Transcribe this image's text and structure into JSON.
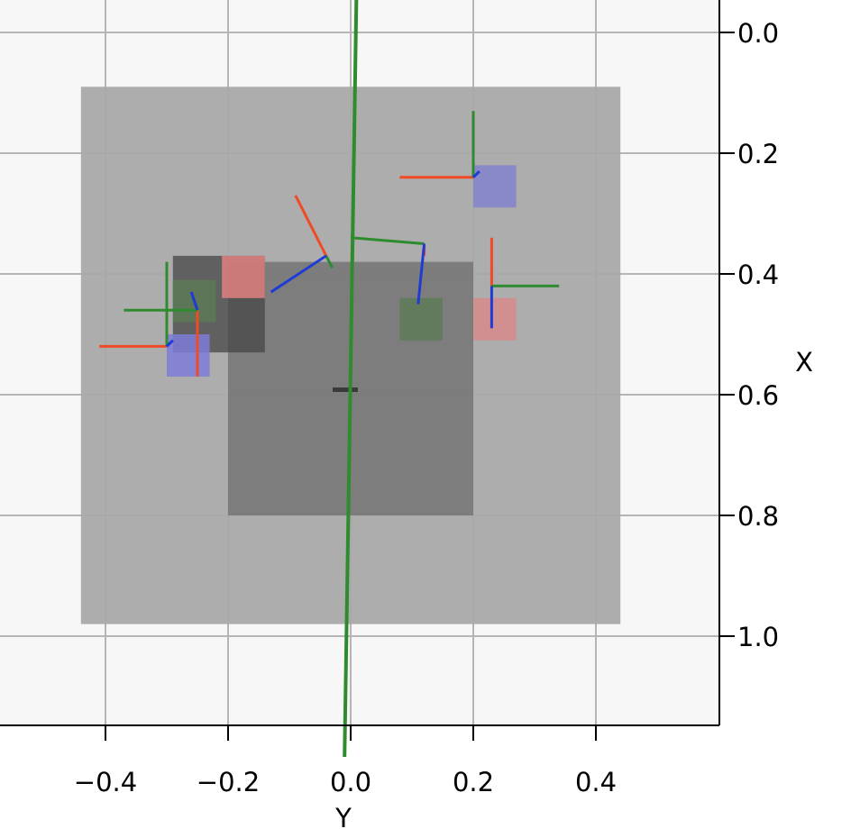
{
  "chart_data": {
    "type": "scatter",
    "title": "",
    "xlabel": "Y",
    "ylabel": "X",
    "xlim": [
      -0.5,
      0.6
    ],
    "ylim": [
      -0.05,
      1.1
    ],
    "y_inverted": true,
    "grid": true,
    "x_ticks": [
      {
        "value": -0.4,
        "label": "−0.4"
      },
      {
        "value": -0.2,
        "label": "−0.2"
      },
      {
        "value": 0.0,
        "label": "0.0"
      },
      {
        "value": 0.2,
        "label": "0.2"
      },
      {
        "value": 0.4,
        "label": "0.4"
      }
    ],
    "y_ticks": [
      {
        "value": 0.0,
        "label": "0.0"
      },
      {
        "value": 0.2,
        "label": "0.2"
      },
      {
        "value": 0.4,
        "label": "0.4"
      },
      {
        "value": 0.6,
        "label": "0.6"
      },
      {
        "value": 0.8,
        "label": "0.8"
      },
      {
        "value": 1.0,
        "label": "1.0"
      }
    ],
    "regions": [
      {
        "kind": "table",
        "y_range": [
          -0.44,
          0.44
        ],
        "x_range": [
          0.09,
          0.98
        ],
        "color": "#a9a9a9"
      },
      {
        "kind": "platform",
        "y_range": [
          -0.2,
          0.2
        ],
        "x_range": [
          0.38,
          0.8
        ],
        "color": "#6e6e6e"
      },
      {
        "kind": "block",
        "y_range": [
          -0.29,
          -0.14
        ],
        "x_range": [
          0.37,
          0.53
        ],
        "color": "#474747"
      }
    ],
    "squares": [
      {
        "color": "#e08080",
        "y_range": [
          -0.21,
          -0.14
        ],
        "x_range": [
          0.37,
          0.44
        ]
      },
      {
        "color": "#5d7a57",
        "y_range": [
          -0.29,
          -0.22
        ],
        "x_range": [
          0.41,
          0.48
        ]
      },
      {
        "color": "#7d7dd8",
        "y_range": [
          -0.3,
          -0.23
        ],
        "x_range": [
          0.5,
          0.57
        ]
      },
      {
        "color": "#8383cc",
        "y_range": [
          0.2,
          0.27
        ],
        "x_range": [
          0.22,
          0.29
        ]
      },
      {
        "color": "#5d7a57",
        "y_range": [
          0.08,
          0.15
        ],
        "x_range": [
          0.44,
          0.51
        ]
      },
      {
        "color": "#d88a8a",
        "y_range": [
          0.2,
          0.27
        ],
        "x_range": [
          0.44,
          0.51
        ]
      }
    ],
    "line_series": [
      {
        "color": "#2e8b2e",
        "points": [
          [
            0.01,
            -0.1
          ],
          [
            -0.01,
            1.2
          ]
        ]
      }
    ],
    "frames": [
      {
        "origin": [
          -0.3,
          0.52
        ],
        "red": [
          -0.41,
          0.52
        ],
        "green": [
          -0.3,
          0.38
        ],
        "blue": [
          -0.29,
          0.51
        ]
      },
      {
        "origin": [
          -0.25,
          0.46
        ],
        "red": [
          -0.25,
          0.57
        ],
        "green": [
          -0.37,
          0.46
        ],
        "blue": [
          -0.26,
          0.43
        ]
      },
      {
        "origin": [
          -0.04,
          0.37
        ],
        "red": [
          -0.09,
          0.27
        ],
        "green": [
          -0.03,
          0.39
        ],
        "blue": [
          -0.13,
          0.43
        ]
      },
      {
        "origin": [
          0.12,
          0.35
        ],
        "red": [
          0.12,
          0.37
        ],
        "green": [
          0.0,
          0.34
        ],
        "blue": [
          0.11,
          0.45
        ]
      },
      {
        "origin": [
          0.2,
          0.24
        ],
        "red": [
          0.08,
          0.24
        ],
        "green": [
          0.2,
          0.13
        ],
        "blue": [
          0.21,
          0.23
        ]
      },
      {
        "origin": [
          0.23,
          0.42
        ],
        "red": [
          0.23,
          0.34
        ],
        "green": [
          0.34,
          0.42
        ],
        "blue": [
          0.23,
          0.49
        ]
      }
    ],
    "origin_marker": [
      0.0,
      0.6
    ],
    "colors": {
      "background": "#f7f7f7",
      "grid": "#b5b5b5",
      "frame_red": "#f04a26",
      "frame_green": "#2e8b2e",
      "frame_blue": "#1f3bd6"
    }
  }
}
